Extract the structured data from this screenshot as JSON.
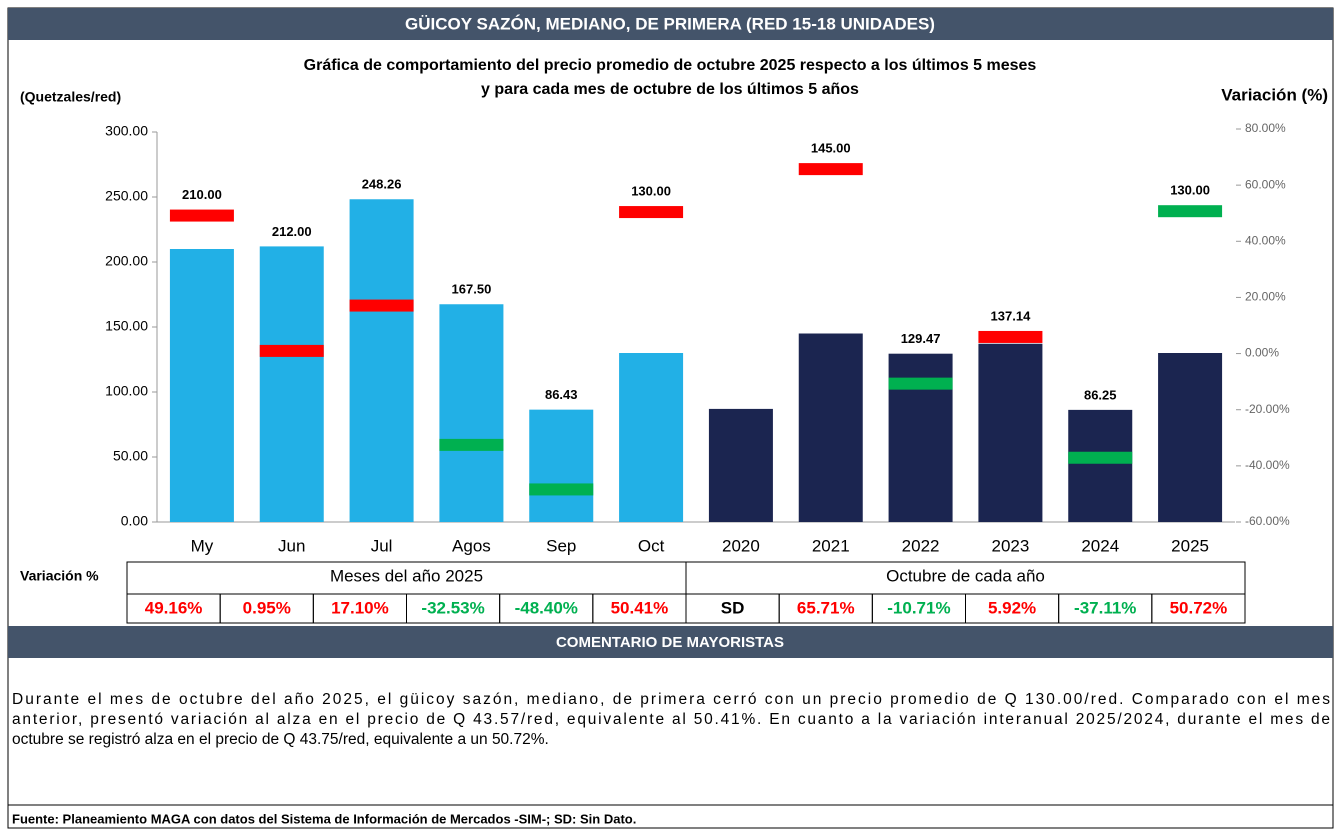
{
  "header": {
    "title": "GÜICOY SAZÓN, MEDIANO, DE PRIMERA (RED 15-18 UNIDADES)"
  },
  "chart_data": {
    "type": "bar",
    "title_lines": [
      "Gráfica de comportamiento del precio promedio de octubre 2025 respecto a los últimos 5 meses",
      "y para cada mes de octubre de los últimos 5 años"
    ],
    "ylabel": "(Quetzales/red)",
    "y2label": "Variación (%)",
    "categories": [
      "My",
      "Jun",
      "Jul",
      "Agos",
      "Sep",
      "Oct",
      "2020",
      "2021",
      "2022",
      "2023",
      "2024",
      "2025"
    ],
    "values": [
      210,
      212,
      248.26,
      167.5,
      86.43,
      130,
      87,
      145,
      129.47,
      137.14,
      86.25,
      130
    ],
    "value_labels": [
      "210.00",
      "212.00",
      "248.26",
      "167.50",
      "86.43",
      "130.00",
      null,
      "145.00",
      "129.47",
      "137.14",
      "86.25",
      "130.00"
    ],
    "colors": [
      "#22b0e6",
      "#22b0e6",
      "#22b0e6",
      "#22b0e6",
      "#22b0e6",
      "#22b0e6",
      "#1b2550",
      "#1b2550",
      "#1b2550",
      "#1b2550",
      "#1b2550",
      "#1b2550"
    ],
    "ylim": [
      0,
      300
    ],
    "yticks": [
      {
        "value": 0,
        "label": "0.00"
      },
      {
        "value": 50,
        "label": "50.00"
      },
      {
        "value": 100,
        "label": "100.00"
      },
      {
        "value": 150,
        "label": "150.00"
      },
      {
        "value": 200,
        "label": "200.00"
      },
      {
        "value": 250,
        "label": "250.00"
      },
      {
        "value": 300,
        "label": "300.00"
      }
    ],
    "y2lim": [
      -60,
      80
    ],
    "y2ticks": [
      {
        "value": -60,
        "label": "-60.00%"
      },
      {
        "value": -40,
        "label": "-40.00%"
      },
      {
        "value": -20,
        "label": "-20.00%"
      },
      {
        "value": 0,
        "label": "0.00%"
      },
      {
        "value": 20,
        "label": "20.00%"
      },
      {
        "value": 40,
        "label": "40.00%"
      },
      {
        "value": 60,
        "label": "60.00%"
      },
      {
        "value": 80,
        "label": "80.00%"
      }
    ],
    "series": [
      {
        "name": "Variación %",
        "axis": "y2",
        "values": [
          49.16,
          0.95,
          17.1,
          -32.53,
          -48.4,
          50.41,
          null,
          65.71,
          -10.71,
          5.92,
          -37.11,
          50.72
        ],
        "value_labels": [
          "49.16%",
          "0.95%",
          "17.10%",
          "-32.53%",
          "-48.40%",
          "50.41%",
          "SD",
          "65.71%",
          "-10.71%",
          "5.92%",
          "-37.11%",
          "50.72%"
        ],
        "colors": [
          "#ff0000",
          "#ff0000",
          "#ff0000",
          "#00b050",
          "#00b050",
          "#ff0000",
          null,
          "#ff0000",
          "#00b050",
          "#ff0000",
          "#00b050",
          "#00b050"
        ],
        "label_colors": [
          "#ff0000",
          "#ff0000",
          "#ff0000",
          "#00b050",
          "#00b050",
          "#ff0000",
          "#000000",
          "#ff0000",
          "#00b050",
          "#ff0000",
          "#00b050",
          "#ff0000"
        ]
      }
    ],
    "groups": [
      "Meses del año  2025",
      "Octubre de cada año"
    ]
  },
  "comment": {
    "title": "COMENTARIO DE MAYORISTAS",
    "lines": [
      "Durante el mes de octubre del año 2025, el güicoy sazón, mediano, de primera cerró con un precio promedio de Q 130.00/red. Comparado con el mes",
      "anterior, presentó variación al alza en el precio de Q 43.57/red, equivalente al 50.41%. En cuanto a la variación interanual 2025/2024, durante el mes de",
      "octubre se registró alza en el precio de Q 43.75/red, equivalente a un 50.72%."
    ]
  },
  "footer": "Fuente: Planeamiento MAGA con datos del  Sistema de Información de Mercados -SIM-; SD: Sin Dato."
}
